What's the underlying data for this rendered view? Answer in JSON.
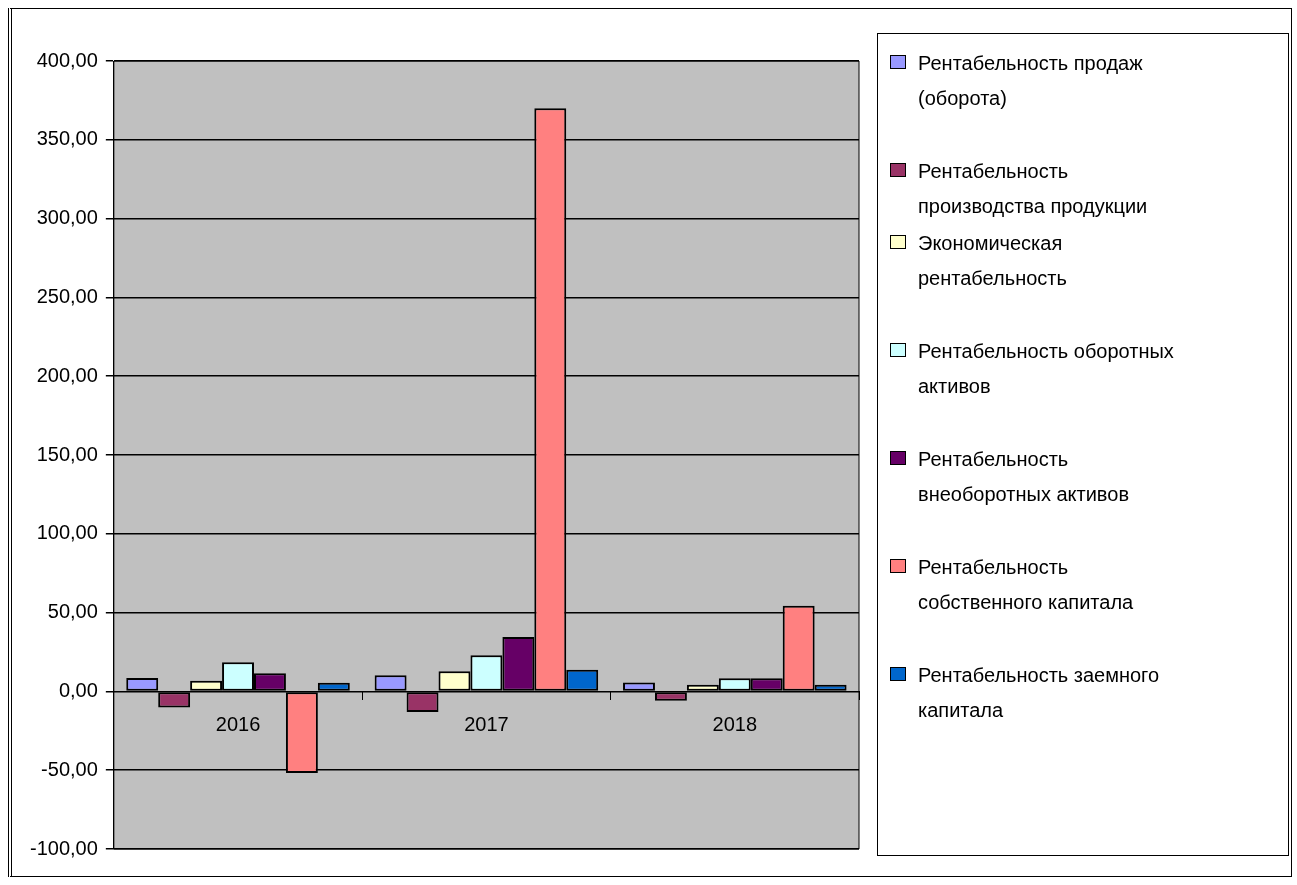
{
  "chart_data": {
    "type": "bar",
    "categories": [
      "2016",
      "2017",
      "2018"
    ],
    "series": [
      {
        "name": "Рентабельность продаж (оборота)",
        "color": "#9999ff",
        "values": [
          8.5,
          10.2,
          5.7
        ]
      },
      {
        "name": "Рентабельность производства продукции",
        "color": "#993366",
        "values": [
          -10.2,
          -13,
          -6
        ]
      },
      {
        "name": "Экономическая рентабельность",
        "color": "#ffffcc",
        "values": [
          6.8,
          12.8,
          4.2
        ]
      },
      {
        "name": "Рентабельность оборотных активов",
        "color": "#ccffff",
        "values": [
          18.5,
          23,
          8.3
        ]
      },
      {
        "name": "Рентабельность внеоборотных активов",
        "color": "#660066",
        "values": [
          11.5,
          34.5,
          8.3
        ]
      },
      {
        "name": "Рентабельность собственного капитала",
        "color": "#ff8080",
        "values": [
          -51.7,
          370,
          54.3
        ]
      },
      {
        "name": "Рентабельность заемного капитала",
        "color": "#0066cc",
        "values": [
          5.5,
          13.8,
          4.2
        ]
      }
    ],
    "ylim": [
      -100,
      400
    ],
    "yticks": [
      {
        "value": -100,
        "label": "-100,00"
      },
      {
        "value": -50,
        "label": "-50,00"
      },
      {
        "value": 0,
        "label": "0,00"
      },
      {
        "value": 50,
        "label": "50,00"
      },
      {
        "value": 100,
        "label": "100,00"
      },
      {
        "value": 150,
        "label": "150,00"
      },
      {
        "value": 200,
        "label": "200,00"
      },
      {
        "value": 250,
        "label": "250,00"
      },
      {
        "value": 300,
        "label": "300,00"
      },
      {
        "value": 350,
        "label": "350,00"
      },
      {
        "value": 400,
        "label": "400,00"
      }
    ],
    "grid": "y",
    "legend": "right"
  }
}
